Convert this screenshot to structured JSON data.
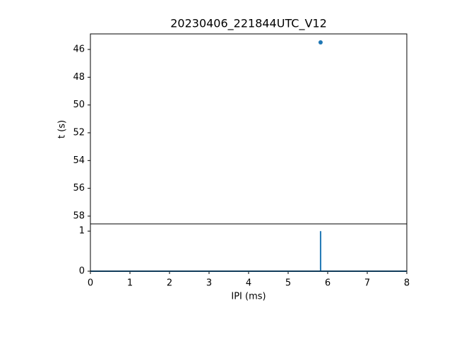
{
  "chart_data": [
    {
      "type": "scatter",
      "title": "20230406_221844UTC_V12",
      "ylabel": "t (s)",
      "x": [
        5.82
      ],
      "values": [
        45.49
      ],
      "color": "#1f77b4",
      "xlim": [
        0,
        8
      ],
      "ylim": [
        58.56,
        44.88
      ],
      "yticks": [
        46,
        48,
        50,
        52,
        54,
        56,
        58
      ]
    },
    {
      "type": "line",
      "xlabel": "IPI (ms)",
      "x": [
        0,
        5.82,
        5.82,
        5.82,
        8
      ],
      "values": [
        0,
        0,
        1,
        0,
        0
      ],
      "color": "#1f77b4",
      "xlim": [
        0,
        8
      ],
      "xticks": [
        0,
        1,
        2,
        3,
        4,
        5,
        6,
        7,
        8
      ],
      "ylim": [
        0,
        1.18
      ],
      "yticks": [
        0,
        1
      ]
    }
  ]
}
